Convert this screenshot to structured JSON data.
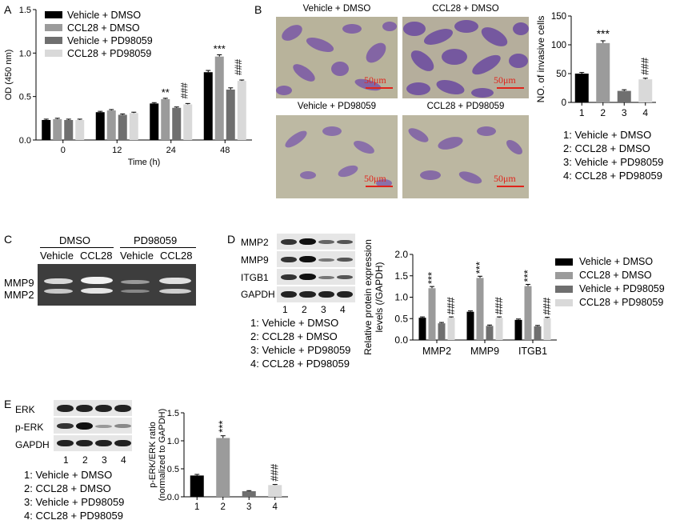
{
  "colors": {
    "s1": "#000000",
    "s2": "#9b9b9b",
    "s3": "#6f6f6f",
    "s4": "#d9d9d9",
    "scale": "#e0241b",
    "stain": "#7b5aa8"
  },
  "panelA": {
    "letter": "A",
    "legend": [
      "Vehicle + DMSO",
      "CCL28 + DMSO",
      "Vehicle + PD98059",
      "CCL28 + PD98059"
    ]
  },
  "panelB": {
    "letter": "B",
    "micro_titles": [
      "Vehicle + DMSO",
      "CCL28 + DMSO",
      "Vehicle + PD98059",
      "CCL28 + PD98059"
    ],
    "scale_label": "50μm",
    "list": [
      "1: Vehicle + DMSO",
      "2: CCL28 + DMSO",
      "3: Vehicle + PD98059",
      "4: CCL28 + PD98059"
    ]
  },
  "panelC": {
    "letter": "C",
    "group_dmso": "DMSO",
    "group_pd": "PD98059",
    "lanes": [
      "Vehicle",
      "CCL28",
      "Vehicle",
      "CCL28"
    ],
    "bands": [
      "MMP9",
      "MMP2"
    ]
  },
  "panelD": {
    "letter": "D",
    "blot_rows": [
      "MMP2",
      "MMP9",
      "ITGB1",
      "GAPDH"
    ],
    "lane_numbers": [
      "1",
      "2",
      "3",
      "4"
    ],
    "list": [
      "1: Vehicle + DMSO",
      "2: CCL28 + DMSO",
      "3: Vehicle + PD98059",
      "4: CCL28 + PD98059"
    ],
    "legend": [
      "Vehicle + DMSO",
      "CCL28 + DMSO",
      "Vehicle + PD98059",
      "CCL28 + PD98059"
    ]
  },
  "panelE": {
    "letter": "E",
    "blot_rows": [
      "ERK",
      "p-ERK",
      "GAPDH"
    ],
    "lane_numbers": [
      "1",
      "2",
      "3",
      "4"
    ],
    "list": [
      "1: Vehicle + DMSO",
      "2: CCL28 + DMSO",
      "3: Vehicle + PD98059",
      "4: CCL28 + PD98059"
    ]
  },
  "chart_data": [
    {
      "id": "A",
      "type": "bar",
      "xlabel": "Time (h)",
      "ylabel": "OD (450 nm)",
      "categories": [
        "0",
        "12",
        "24",
        "48"
      ],
      "ylim": [
        0,
        1.5
      ],
      "yticks": [
        "0.0",
        "0.5",
        "1.0",
        "1.5"
      ],
      "series": [
        {
          "name": "Vehicle + DMSO",
          "values": [
            0.23,
            0.32,
            0.42,
            0.78
          ],
          "errors": [
            0.01,
            0.01,
            0.01,
            0.02
          ]
        },
        {
          "name": "CCL28 + DMSO",
          "values": [
            0.24,
            0.34,
            0.47,
            0.96
          ],
          "errors": [
            0.01,
            0.01,
            0.01,
            0.02
          ]
        },
        {
          "name": "Vehicle + PD98059",
          "values": [
            0.23,
            0.29,
            0.37,
            0.58
          ],
          "errors": [
            0.01,
            0.01,
            0.01,
            0.02
          ]
        },
        {
          "name": "CCL28 + PD98059",
          "values": [
            0.23,
            0.31,
            0.41,
            0.68
          ],
          "errors": [
            0.01,
            0.01,
            0.01,
            0.01
          ]
        }
      ],
      "annotations": [
        {
          "category": "24",
          "series": 1,
          "text": "**"
        },
        {
          "category": "24",
          "series": 3,
          "text": "###"
        },
        {
          "category": "48",
          "series": 1,
          "text": "***"
        },
        {
          "category": "48",
          "series": 3,
          "text": "###"
        }
      ]
    },
    {
      "id": "B",
      "type": "bar",
      "ylabel": "NO. of invasive cells",
      "categories": [
        "1",
        "2",
        "3",
        "4"
      ],
      "ylim": [
        0,
        150
      ],
      "yticks": [
        "0",
        "50",
        "100",
        "150"
      ],
      "values": [
        50,
        103,
        20,
        40
      ],
      "errors": [
        2,
        4,
        2,
        2
      ],
      "annotations": [
        {
          "index": 1,
          "text": "***"
        },
        {
          "index": 3,
          "text": "###"
        }
      ]
    },
    {
      "id": "D",
      "type": "bar",
      "ylabel": "Relative protein expression levels (/GAPDH)",
      "categories": [
        "MMP2",
        "MMP9",
        "ITGB1"
      ],
      "ylim": [
        0,
        2.0
      ],
      "yticks": [
        "0.0",
        "0.5",
        "1.0",
        "1.5",
        "2.0"
      ],
      "series": [
        {
          "name": "Vehicle + DMSO",
          "values": [
            0.52,
            0.66,
            0.47
          ],
          "errors": [
            0.02,
            0.02,
            0.02
          ]
        },
        {
          "name": "CCL28 + DMSO",
          "values": [
            1.21,
            1.45,
            1.26
          ],
          "errors": [
            0.04,
            0.04,
            0.04
          ]
        },
        {
          "name": "Vehicle + PD98059",
          "values": [
            0.39,
            0.33,
            0.32
          ],
          "errors": [
            0.02,
            0.02,
            0.02
          ]
        },
        {
          "name": "CCL28 + PD98059",
          "values": [
            0.52,
            0.52,
            0.51
          ],
          "errors": [
            0.02,
            0.02,
            0.02
          ]
        }
      ],
      "annotations": [
        {
          "category": "MMP2",
          "series": 1,
          "text": "***"
        },
        {
          "category": "MMP2",
          "series": 3,
          "text": "###"
        },
        {
          "category": "MMP9",
          "series": 1,
          "text": "***"
        },
        {
          "category": "MMP9",
          "series": 3,
          "text": "###"
        },
        {
          "category": "ITGB1",
          "series": 1,
          "text": "***"
        },
        {
          "category": "ITGB1",
          "series": 3,
          "text": "###"
        }
      ]
    },
    {
      "id": "E",
      "type": "bar",
      "ylabel": "p-ERK/ERK ratio (normalized to GAPDH)",
      "categories": [
        "1",
        "2",
        "3",
        "4"
      ],
      "ylim": [
        0,
        1.5
      ],
      "yticks": [
        "0.0",
        "0.5",
        "1.0",
        "1.5"
      ],
      "values": [
        0.38,
        1.05,
        0.1,
        0.21
      ],
      "errors": [
        0.02,
        0.04,
        0.01,
        0.01
      ],
      "annotations": [
        {
          "index": 1,
          "text": "***"
        },
        {
          "index": 3,
          "text": "###"
        }
      ]
    }
  ]
}
